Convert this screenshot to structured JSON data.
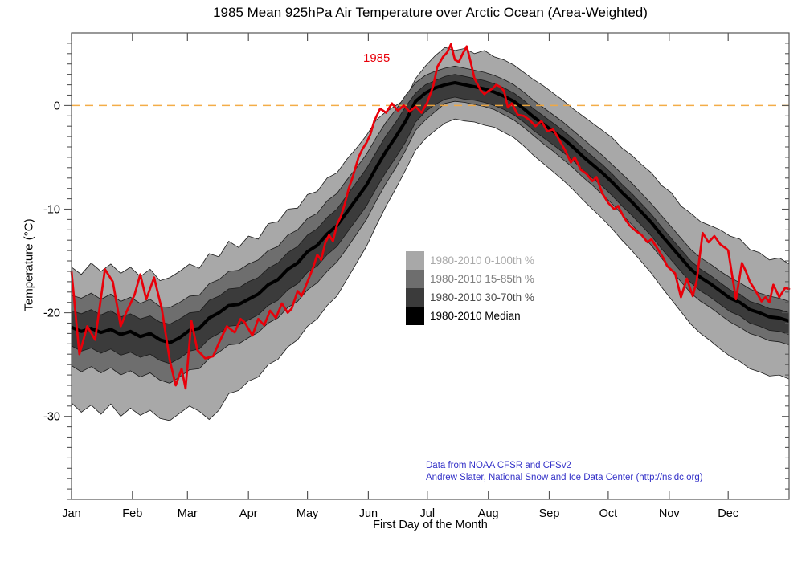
{
  "title": "1985 Mean 925hPa Air Temperature over Arctic Ocean (Area-Weighted)",
  "annotation_1985": {
    "text": "1985",
    "color": "#e8000a"
  },
  "credit": {
    "line1": "Data from NOAA CFSR and CFSv2",
    "line2": "Andrew Slater, National Snow and Ice Data Center (http://nsidc.org)",
    "color": "#3432c8"
  },
  "legend": {
    "items": [
      {
        "label": "1980-2010 0-100th %",
        "color": "#a8a8a8",
        "text_color": "#a9a9a9"
      },
      {
        "label": "1980-2010 15-85th %",
        "color": "#6e6e6e",
        "text_color": "#7f7f7f"
      },
      {
        "label": "1980-2010 30-70th %",
        "color": "#3b3b3b",
        "text_color": "#4a4a4a"
      },
      {
        "label": "1980-2010 Median",
        "color": "#000000",
        "text_color": "#000000"
      }
    ]
  },
  "chart_data": {
    "type": "line",
    "title": "1985 Mean 925hPa Air Temperature over Arctic Ocean (Area-Weighted)",
    "xlabel": "First Day of the Month",
    "ylabel": "Temperature (°C)",
    "x_tick_labels": [
      "Jan",
      "Feb",
      "Mar",
      "Apr",
      "May",
      "Jun",
      "Jul",
      "Aug",
      "Sep",
      "Oct",
      "Nov",
      "Dec"
    ],
    "month_start_days": [
      0,
      31,
      59,
      90,
      120,
      151,
      181,
      212,
      243,
      273,
      304,
      334
    ],
    "x_range_days": [
      0,
      365
    ],
    "ylim": [
      -38,
      7
    ],
    "y_major_ticks": [
      0,
      -10,
      -20,
      -30
    ],
    "y_minor_step": 1,
    "grid": false,
    "zero_line": {
      "value": 0,
      "color": "#f3a93f",
      "dash": "10 7"
    },
    "axis_color": "#555555",
    "clim_days": [
      0,
      5,
      10,
      15,
      20,
      25,
      30,
      35,
      40,
      45,
      50,
      55,
      60,
      65,
      70,
      75,
      80,
      85,
      90,
      95,
      100,
      105,
      110,
      115,
      120,
      125,
      130,
      135,
      140,
      145,
      150,
      155,
      160,
      165,
      170,
      175,
      180,
      185,
      190,
      195,
      200,
      205,
      210,
      215,
      220,
      225,
      230,
      235,
      240,
      245,
      250,
      255,
      260,
      265,
      270,
      275,
      280,
      285,
      290,
      295,
      300,
      305,
      310,
      315,
      320,
      325,
      330,
      335,
      340,
      345,
      350,
      355,
      360,
      365
    ],
    "bands": [
      {
        "name": "1980-2010 0-100th %",
        "color": "#a8a8a8",
        "upper": [
          -15.6,
          -16.3,
          -15.2,
          -16.0,
          -15.3,
          -16.2,
          -15.6,
          -16.5,
          -15.8,
          -16.9,
          -16.6,
          -16.0,
          -15.3,
          -15.7,
          -14.3,
          -14.6,
          -13.1,
          -13.7,
          -12.6,
          -12.9,
          -11.4,
          -11.2,
          -10.0,
          -9.9,
          -8.6,
          -8.3,
          -7.0,
          -6.5,
          -5.2,
          -4.1,
          -2.9,
          -1.4,
          -0.6,
          0.0,
          0.6,
          2.6,
          3.8,
          4.8,
          5.6,
          5.3,
          5.5,
          5.0,
          5.3,
          4.7,
          4.4,
          3.9,
          3.2,
          2.5,
          1.9,
          1.2,
          0.5,
          -0.3,
          -1.0,
          -1.7,
          -2.4,
          -3.1,
          -4.1,
          -4.8,
          -5.7,
          -6.5,
          -7.7,
          -8.4,
          -9.7,
          -10.4,
          -11.2,
          -11.6,
          -12.0,
          -12.6,
          -12.9,
          -13.9,
          -14.2,
          -14.9,
          -14.7,
          -15.3
        ],
        "lower": [
          -28.7,
          -29.6,
          -28.9,
          -29.8,
          -28.8,
          -30.0,
          -29.2,
          -29.9,
          -29.4,
          -30.2,
          -30.4,
          -29.7,
          -29.0,
          -29.5,
          -30.3,
          -29.4,
          -27.8,
          -27.5,
          -26.6,
          -26.2,
          -25.0,
          -24.5,
          -23.3,
          -22.6,
          -21.3,
          -20.6,
          -19.3,
          -18.4,
          -16.8,
          -15.2,
          -13.6,
          -11.6,
          -9.7,
          -8.0,
          -6.2,
          -4.3,
          -3.2,
          -2.4,
          -1.7,
          -1.3,
          -1.5,
          -1.6,
          -1.9,
          -2.1,
          -2.6,
          -3.1,
          -3.9,
          -4.8,
          -5.6,
          -6.4,
          -7.2,
          -8.1,
          -9.1,
          -10.0,
          -10.9,
          -11.9,
          -13.0,
          -14.0,
          -15.1,
          -16.2,
          -17.5,
          -18.7,
          -19.9,
          -21.1,
          -22.0,
          -22.7,
          -23.5,
          -24.2,
          -24.7,
          -25.4,
          -25.7,
          -26.1,
          -26.0,
          -26.4
        ]
      },
      {
        "name": "1980-2010 15-85th %",
        "color": "#6e6e6e",
        "upper": [
          -18.3,
          -18.6,
          -18.1,
          -18.7,
          -18.2,
          -18.9,
          -18.5,
          -19.1,
          -18.7,
          -19.4,
          -19.5,
          -19.0,
          -18.4,
          -18.3,
          -17.2,
          -16.8,
          -16.0,
          -15.9,
          -15.3,
          -14.9,
          -14.0,
          -13.6,
          -12.5,
          -12.0,
          -10.9,
          -10.4,
          -9.2,
          -8.5,
          -7.2,
          -6.0,
          -4.7,
          -3.1,
          -1.6,
          -0.4,
          1.0,
          2.2,
          2.9,
          3.3,
          3.6,
          3.8,
          3.6,
          3.4,
          3.2,
          2.9,
          2.5,
          2.0,
          1.3,
          0.5,
          -0.2,
          -0.9,
          -1.6,
          -2.4,
          -3.2,
          -4.0,
          -4.8,
          -5.7,
          -6.6,
          -7.5,
          -8.5,
          -9.5,
          -10.6,
          -11.7,
          -12.8,
          -13.9,
          -14.7,
          -15.3,
          -16.0,
          -16.6,
          -17.1,
          -17.7,
          -18.1,
          -18.4,
          -18.6,
          -18.9
        ],
        "lower": [
          -25.1,
          -25.7,
          -25.2,
          -25.8,
          -25.3,
          -26.0,
          -25.6,
          -26.2,
          -25.8,
          -26.5,
          -26.8,
          -26.2,
          -25.5,
          -25.4,
          -24.4,
          -23.8,
          -23.1,
          -23.0,
          -22.4,
          -21.9,
          -21.0,
          -20.5,
          -19.5,
          -18.9,
          -17.8,
          -17.1,
          -16.0,
          -15.1,
          -13.8,
          -12.4,
          -11.0,
          -9.2,
          -7.5,
          -6.0,
          -4.3,
          -2.4,
          -1.4,
          -0.6,
          0.2,
          0.4,
          0.3,
          0.1,
          -0.1,
          -0.4,
          -0.9,
          -1.4,
          -2.1,
          -2.9,
          -3.7,
          -4.4,
          -5.2,
          -6.0,
          -6.9,
          -7.7,
          -8.6,
          -9.5,
          -10.5,
          -11.5,
          -12.5,
          -13.5,
          -14.7,
          -15.9,
          -17.0,
          -18.1,
          -18.9,
          -19.5,
          -20.2,
          -20.9,
          -21.4,
          -22.0,
          -22.3,
          -22.7,
          -22.8,
          -23.1
        ]
      },
      {
        "name": "1980-2010 30-70th %",
        "color": "#3b3b3b",
        "upper": [
          -19.8,
          -20.1,
          -19.7,
          -20.2,
          -19.8,
          -20.4,
          -20.1,
          -20.6,
          -20.3,
          -20.9,
          -21.1,
          -20.6,
          -20.0,
          -19.9,
          -18.8,
          -18.4,
          -17.7,
          -17.6,
          -17.0,
          -16.6,
          -15.7,
          -15.2,
          -14.2,
          -13.6,
          -12.5,
          -11.9,
          -10.8,
          -10.0,
          -8.7,
          -7.4,
          -6.1,
          -4.5,
          -2.9,
          -1.6,
          -0.1,
          1.2,
          2.0,
          2.4,
          2.8,
          3.0,
          2.8,
          2.6,
          2.4,
          2.1,
          1.7,
          1.2,
          0.5,
          -0.3,
          -1.0,
          -1.7,
          -2.4,
          -3.2,
          -4.1,
          -4.9,
          -5.7,
          -6.6,
          -7.6,
          -8.5,
          -9.5,
          -10.5,
          -11.7,
          -12.8,
          -13.9,
          -15.0,
          -15.8,
          -16.4,
          -17.1,
          -17.8,
          -18.2,
          -18.9,
          -19.2,
          -19.6,
          -19.7,
          -20.0
        ],
        "lower": [
          -23.2,
          -23.7,
          -23.4,
          -23.9,
          -23.5,
          -24.1,
          -23.8,
          -24.3,
          -24.0,
          -24.6,
          -24.9,
          -24.4,
          -23.7,
          -23.5,
          -22.5,
          -22.0,
          -21.3,
          -21.2,
          -20.7,
          -20.2,
          -19.3,
          -18.8,
          -17.8,
          -17.2,
          -16.1,
          -15.5,
          -14.4,
          -13.6,
          -12.3,
          -11.0,
          -9.7,
          -8.0,
          -6.4,
          -5.0,
          -3.5,
          -1.6,
          -0.6,
          0.1,
          0.6,
          0.8,
          0.6,
          0.5,
          0.3,
          0.0,
          -0.4,
          -0.9,
          -1.6,
          -2.4,
          -3.1,
          -3.8,
          -4.5,
          -5.3,
          -6.2,
          -7.0,
          -7.8,
          -8.7,
          -9.7,
          -10.6,
          -11.6,
          -12.6,
          -13.8,
          -14.9,
          -16.0,
          -17.1,
          -17.9,
          -18.5,
          -19.2,
          -19.9,
          -20.3,
          -21.0,
          -21.3,
          -21.7,
          -21.8,
          -22.1
        ]
      }
    ],
    "median": {
      "name": "1980-2010 Median",
      "color": "#000000",
      "values": [
        -21.4,
        -21.8,
        -21.5,
        -21.9,
        -21.6,
        -22.1,
        -21.8,
        -22.3,
        -22.0,
        -22.6,
        -22.9,
        -22.4,
        -21.7,
        -21.5,
        -20.5,
        -20.0,
        -19.3,
        -19.2,
        -18.7,
        -18.2,
        -17.3,
        -16.8,
        -15.8,
        -15.2,
        -14.1,
        -13.5,
        -12.4,
        -11.6,
        -10.3,
        -9.0,
        -7.7,
        -6.0,
        -4.4,
        -3.0,
        -1.5,
        0.4,
        1.2,
        1.7,
        2.0,
        2.2,
        2.0,
        1.8,
        1.6,
        1.3,
        0.9,
        0.4,
        -0.3,
        -1.1,
        -1.8,
        -2.5,
        -3.2,
        -4.0,
        -4.9,
        -5.7,
        -6.5,
        -7.4,
        -8.4,
        -9.3,
        -10.3,
        -11.3,
        -12.5,
        -13.6,
        -14.7,
        -15.8,
        -16.6,
        -17.2,
        -17.9,
        -18.6,
        -19.0,
        -19.7,
        -20.0,
        -20.4,
        -20.5,
        -20.8
      ]
    },
    "series_1985": {
      "name": "1985",
      "color": "#e8000a",
      "days": [
        0,
        4,
        8,
        12,
        17,
        21,
        25,
        28,
        32,
        35,
        38,
        42,
        46,
        50,
        53,
        56,
        58,
        61,
        64,
        68,
        72,
        75,
        79,
        83,
        86,
        88,
        92,
        95,
        98,
        101,
        104,
        107,
        110,
        112,
        115,
        117,
        119,
        123,
        125,
        127,
        129,
        131,
        133,
        135,
        137,
        139,
        141,
        143,
        146,
        148,
        150,
        152,
        154,
        157,
        160,
        163,
        166,
        169,
        172,
        175,
        178,
        181,
        184,
        186,
        189,
        191,
        193,
        195,
        197,
        199,
        201,
        203,
        205,
        208,
        210,
        212,
        214,
        216,
        218,
        220,
        222,
        224,
        227,
        230,
        233,
        236,
        239,
        242,
        245,
        248,
        251,
        254,
        256,
        259,
        262,
        265,
        267,
        270,
        273,
        276,
        278,
        281,
        284,
        287,
        290,
        293,
        295,
        298,
        301,
        303,
        307,
        310,
        313,
        316,
        318,
        321,
        324,
        327,
        330,
        333,
        334,
        338,
        341,
        343,
        345,
        348,
        351,
        353,
        355,
        357,
        360,
        363,
        365
      ],
      "values": [
        -16.0,
        -24.0,
        -21.3,
        -22.6,
        -15.8,
        -17.0,
        -21.3,
        -19.9,
        -18.3,
        -16.3,
        -18.7,
        -16.6,
        -19.7,
        -24.6,
        -27.0,
        -25.4,
        -27.3,
        -20.8,
        -23.6,
        -24.4,
        -24.2,
        -22.9,
        -21.3,
        -21.9,
        -20.6,
        -20.9,
        -22.2,
        -20.6,
        -21.2,
        -19.8,
        -20.5,
        -19.1,
        -20.0,
        -19.6,
        -17.9,
        -18.4,
        -17.5,
        -15.6,
        -14.4,
        -14.9,
        -13.3,
        -12.5,
        -13.1,
        -11.5,
        -10.7,
        -9.5,
        -8.0,
        -6.9,
        -5.0,
        -4.2,
        -3.6,
        -2.8,
        -1.5,
        -0.3,
        -0.7,
        0.2,
        -0.5,
        0.0,
        -0.6,
        -0.1,
        -0.7,
        0.3,
        1.9,
        3.7,
        4.7,
        5.1,
        5.9,
        4.4,
        4.2,
        5.0,
        5.7,
        4.2,
        2.6,
        1.5,
        1.1,
        1.4,
        1.6,
        2.0,
        1.8,
        1.4,
        -0.2,
        0.2,
        -0.9,
        -1.0,
        -1.4,
        -2.0,
        -1.5,
        -2.5,
        -2.3,
        -3.3,
        -4.3,
        -5.5,
        -5.0,
        -6.2,
        -6.6,
        -7.3,
        -6.9,
        -8.5,
        -9.4,
        -10.0,
        -9.7,
        -10.8,
        -11.6,
        -12.1,
        -12.5,
        -13.2,
        -12.9,
        -13.8,
        -14.7,
        -15.5,
        -16.2,
        -18.5,
        -16.7,
        -18.4,
        -16.9,
        -12.3,
        -13.2,
        -12.6,
        -13.4,
        -13.8,
        -14.0,
        -18.7,
        -15.2,
        -16.0,
        -17.0,
        -17.9,
        -18.9,
        -18.5,
        -19.0,
        -17.3,
        -18.5,
        -17.6,
        -17.7
      ]
    }
  }
}
